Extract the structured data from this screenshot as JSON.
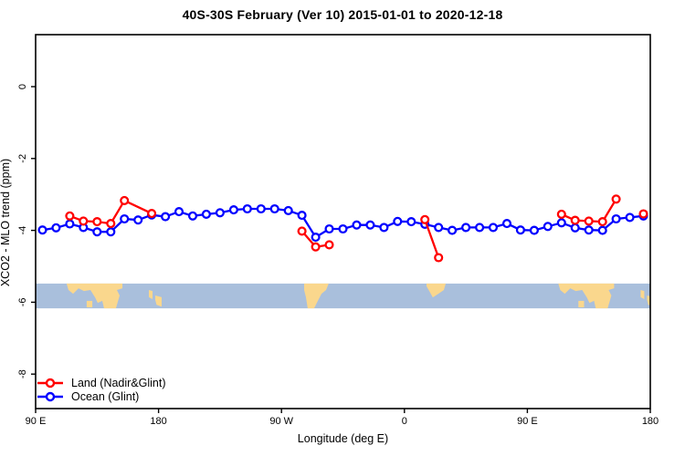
{
  "page": {
    "background": "#FFFFFF"
  },
  "chart_data": {
    "type": "line",
    "title": "40S-30S February (Ver 10)   2015-01-01 to 2020-12-18",
    "xlabel": "Longitude (deg E)",
    "ylabel": "XCO2 - MLO trend (ppm)",
    "x_axis": {
      "range_deg": [
        90,
        540
      ],
      "ticks": [
        {
          "lon": 90,
          "label": "90 E"
        },
        {
          "lon": 180,
          "label": "180"
        },
        {
          "lon": 270,
          "label": "90 W"
        },
        {
          "lon": 360,
          "label": "0"
        },
        {
          "lon": 450,
          "label": "90 E"
        },
        {
          "lon": 540,
          "label": "180"
        }
      ]
    },
    "y_axis": {
      "range_ppm": [
        -8.96,
        1.45
      ],
      "ticks": [
        {
          "value": 0,
          "label": "0"
        },
        {
          "value": -2,
          "label": "-2"
        },
        {
          "value": -4,
          "label": "-4"
        },
        {
          "value": -6,
          "label": "-6"
        },
        {
          "value": -8,
          "label": "-8"
        }
      ]
    },
    "series": [
      {
        "name": "Ocean (Glint)",
        "color": "#0000FF",
        "marker": "open-circle",
        "segments": [
          [
            [
              95,
              -3.99
            ],
            [
              105,
              -3.93
            ],
            [
              115,
              -3.82
            ],
            [
              125,
              -3.92
            ],
            [
              135,
              -4.04
            ],
            [
              145,
              -4.04
            ],
            [
              155,
              -3.68
            ],
            [
              165,
              -3.71
            ],
            [
              175,
              -3.57
            ],
            [
              185,
              -3.62
            ],
            [
              195,
              -3.48
            ],
            [
              205,
              -3.6
            ],
            [
              215,
              -3.55
            ],
            [
              225,
              -3.51
            ],
            [
              235,
              -3.43
            ],
            [
              245,
              -3.4
            ],
            [
              255,
              -3.4
            ],
            [
              265,
              -3.4
            ],
            [
              275,
              -3.45
            ],
            [
              285,
              -3.58
            ],
            [
              295,
              -4.19
            ],
            [
              305,
              -3.96
            ],
            [
              315,
              -3.96
            ],
            [
              325,
              -3.85
            ],
            [
              335,
              -3.85
            ],
            [
              345,
              -3.92
            ],
            [
              355,
              -3.75
            ],
            [
              365,
              -3.76
            ],
            [
              375,
              -3.83
            ],
            [
              385,
              -3.92
            ],
            [
              395,
              -4.0
            ],
            [
              405,
              -3.92
            ],
            [
              415,
              -3.92
            ],
            [
              425,
              -3.92
            ],
            [
              435,
              -3.81
            ],
            [
              445,
              -3.99
            ],
            [
              455,
              -4.0
            ],
            [
              465,
              -3.89
            ],
            [
              475,
              -3.79
            ],
            [
              485,
              -3.93
            ],
            [
              495,
              -3.99
            ],
            [
              505,
              -4.0
            ],
            [
              515,
              -3.68
            ],
            [
              525,
              -3.64
            ],
            [
              535,
              -3.6
            ]
          ]
        ]
      },
      {
        "name": "Land (Nadir&Glint)",
        "color": "#FF0000",
        "marker": "open-circle",
        "segments": [
          [
            [
              115,
              -3.6
            ],
            [
              125,
              -3.74
            ],
            [
              135,
              -3.76
            ],
            [
              145,
              -3.81
            ],
            [
              155,
              -3.17
            ],
            [
              175,
              -3.53
            ]
          ],
          [
            [
              285,
              -4.02
            ],
            [
              295,
              -4.46
            ],
            [
              305,
              -4.4
            ]
          ],
          [
            [
              375,
              -3.7
            ],
            [
              385,
              -4.76
            ]
          ],
          [
            [
              475,
              -3.55
            ],
            [
              485,
              -3.72
            ],
            [
              495,
              -3.74
            ],
            [
              505,
              -3.76
            ],
            [
              515,
              -3.13
            ]
          ],
          [
            [
              535,
              -3.54
            ]
          ]
        ]
      }
    ],
    "legend": {
      "position": "bottom-left",
      "entries": [
        {
          "label": "Land (Nadir&Glint)",
          "color": "#FF0000"
        },
        {
          "label": "Ocean (Glint)",
          "color": "#0000FF"
        }
      ]
    },
    "map_band": {
      "description": "40S-30S latitude strip world map",
      "ppm_top": -5.48,
      "ppm_bottom": -6.17,
      "ocean_color": "#A9BFDC",
      "land_color": "#FAD78D",
      "repeat_offsets_deg": [
        0,
        360
      ],
      "land_patches": [
        {
          "name": "australia",
          "pts": [
            [
              112.7,
              0
            ],
            [
              153.5,
              0
            ],
            [
              153.5,
              0.19
            ],
            [
              149.5,
              0.26
            ],
            [
              151.5,
              0.48
            ],
            [
              148.8,
              1
            ],
            [
              140.1,
              1
            ],
            [
              138.8,
              0.7
            ],
            [
              135.5,
              0.78
            ],
            [
              133.5,
              0.56
            ],
            [
              130.1,
              0.26
            ],
            [
              125.4,
              0.3
            ],
            [
              121.4,
              0.19
            ],
            [
              117.4,
              0.41
            ],
            [
              114.1,
              0.26
            ]
          ]
        },
        {
          "name": "tasmania",
          "pts": [
            [
              127.4,
              0.7
            ],
            [
              131.5,
              0.7
            ],
            [
              131.5,
              0.96
            ],
            [
              127.4,
              0.96
            ]
          ]
        },
        {
          "name": "new-zealand-north",
          "pts": [
            [
              172.9,
              0.26
            ],
            [
              175.6,
              0.3
            ],
            [
              175.6,
              0.63
            ],
            [
              172.9,
              0.55
            ]
          ]
        },
        {
          "name": "new-zealand-south",
          "pts": [
            [
              177.6,
              0.48
            ],
            [
              182.3,
              0.55
            ],
            [
              182.3,
              0.93
            ],
            [
              178.5,
              0.86
            ],
            [
              177.6,
              0.66
            ]
          ]
        },
        {
          "name": "south-america",
          "pts": [
            [
              286.6,
              0
            ],
            [
              304.6,
              0
            ],
            [
              302.6,
              0.26
            ],
            [
              299.3,
              0.41
            ],
            [
              296.6,
              0.7
            ],
            [
              293.9,
              1
            ],
            [
              289.2,
              1
            ],
            [
              287.9,
              0.56
            ],
            [
              286.6,
              0.26
            ]
          ]
        },
        {
          "name": "south-africa",
          "pts": [
            [
              376.2,
              0
            ],
            [
              390.2,
              0
            ],
            [
              388.9,
              0.26
            ],
            [
              384.9,
              0.41
            ],
            [
              380.8,
              0.56
            ],
            [
              378.2,
              0.3
            ],
            [
              376.2,
              0.11
            ]
          ]
        }
      ]
    }
  }
}
